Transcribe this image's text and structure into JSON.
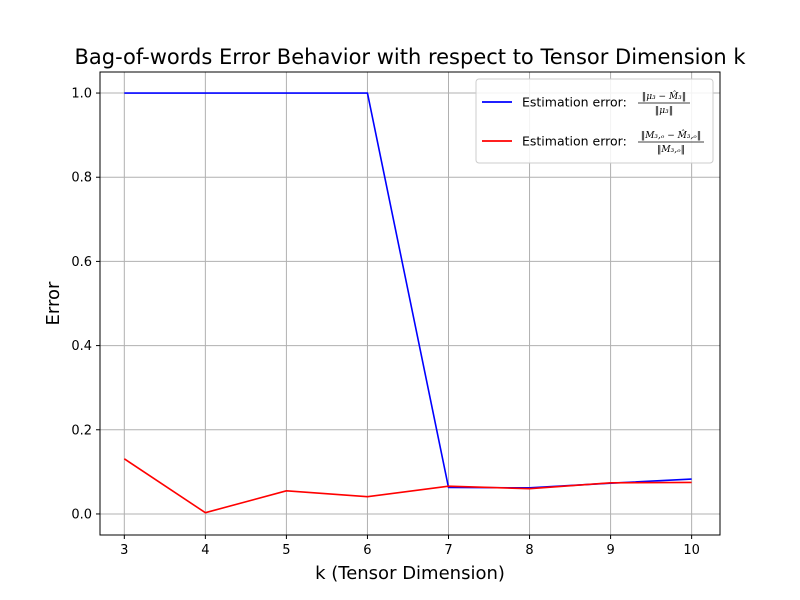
{
  "chart_data": {
    "type": "line",
    "title": "Bag-of-words Error Behavior with respect to Tensor Dimension k",
    "xlabel": "k (Tensor Dimension)",
    "ylabel": "Error",
    "x": [
      3,
      4,
      5,
      6,
      7,
      8,
      9,
      10
    ],
    "xlim": [
      2.7,
      10.35
    ],
    "ylim": [
      -0.05,
      1.05
    ],
    "xticks": [
      "3",
      "4",
      "5",
      "6",
      "7",
      "8",
      "9",
      "10"
    ],
    "yticks": [
      "0.0",
      "0.2",
      "0.4",
      "0.6",
      "0.8",
      "1.0"
    ],
    "grid": true,
    "legend_position": "top-right",
    "series": [
      {
        "name": "Estimation error: ‖μ₃ − M̂₃‖ / ‖μ₃‖",
        "legend_prefix": "Estimation error:",
        "legend_num": "‖μ₃ − M̂₃‖",
        "legend_den": "‖μ₃‖",
        "color": "#0000ff",
        "values": [
          1.0,
          1.0,
          1.0,
          1.0,
          0.063,
          0.062,
          0.073,
          0.083
        ]
      },
      {
        "name": "Estimation error: ‖M₃,ₒ − M̂₃,ₒ‖ / ‖M₃,ₒ‖",
        "legend_prefix": "Estimation error:",
        "legend_num": "‖M₃,ₒ − M̂₃,ₒ‖",
        "legend_den": "‖M₃,ₒ‖",
        "color": "#ff0000",
        "values": [
          0.131,
          0.003,
          0.055,
          0.041,
          0.066,
          0.06,
          0.074,
          0.075
        ]
      }
    ]
  }
}
